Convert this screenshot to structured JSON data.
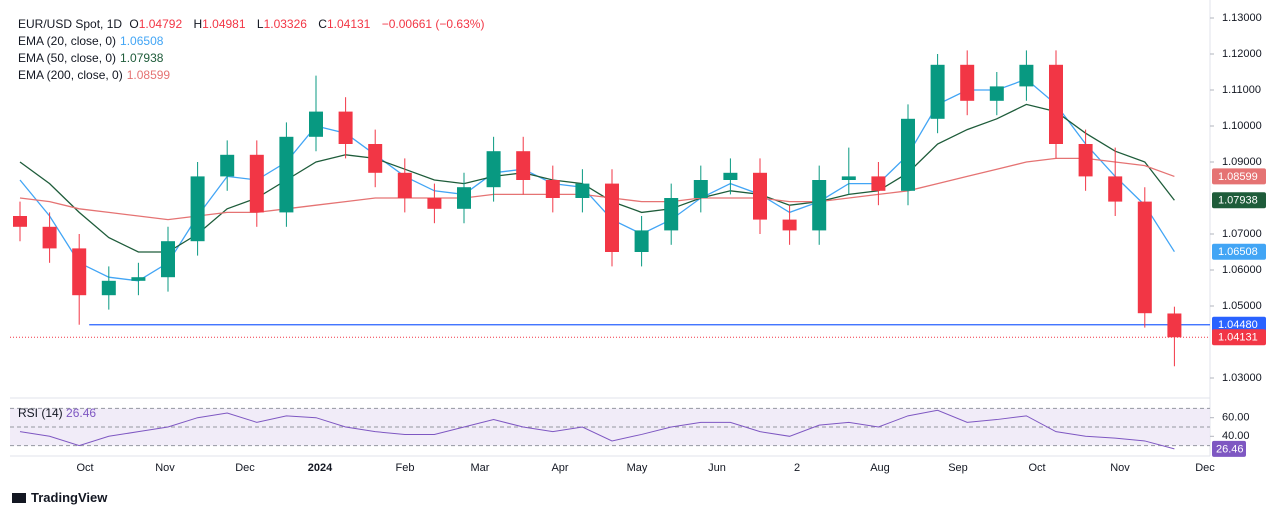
{
  "header": {
    "title": "EUR/USD Spot, 1D",
    "ohlc": [
      {
        "label": "O",
        "value": "1.04792"
      },
      {
        "label": "H",
        "value": "1.04981"
      },
      {
        "label": "L",
        "value": "1.03326"
      },
      {
        "label": "C",
        "value": "1.04131"
      }
    ],
    "change": "−0.00661 (−0.63%)"
  },
  "chart_data": [
    {
      "type": "candlestick",
      "candles": {
        "open": [
          1.075,
          1.072,
          1.066,
          1.053,
          1.057,
          1.058,
          1.068,
          1.086,
          1.092,
          1.076,
          1.097,
          1.104,
          1.095,
          1.087,
          1.08,
          1.077,
          1.083,
          1.093,
          1.085,
          1.08,
          1.084,
          1.065,
          1.071,
          1.08,
          1.085,
          1.087,
          1.074,
          1.071,
          1.085,
          1.086,
          1.082,
          1.102,
          1.117,
          1.107,
          1.111,
          1.117,
          1.095,
          1.086,
          1.079,
          1.04792
        ],
        "high": [
          1.079,
          1.076,
          1.07,
          1.061,
          1.062,
          1.072,
          1.09,
          1.096,
          1.096,
          1.101,
          1.114,
          1.108,
          1.099,
          1.091,
          1.084,
          1.087,
          1.097,
          1.097,
          1.089,
          1.088,
          1.088,
          1.075,
          1.084,
          1.089,
          1.091,
          1.091,
          1.078,
          1.089,
          1.094,
          1.09,
          1.106,
          1.12,
          1.121,
          1.115,
          1.121,
          1.121,
          1.099,
          1.094,
          1.083,
          1.04981
        ],
        "low": [
          1.068,
          1.062,
          1.0448,
          1.049,
          1.053,
          1.054,
          1.064,
          1.082,
          1.072,
          1.072,
          1.093,
          1.091,
          1.083,
          1.076,
          1.073,
          1.073,
          1.079,
          1.081,
          1.076,
          1.076,
          1.061,
          1.061,
          1.067,
          1.076,
          1.081,
          1.07,
          1.067,
          1.067,
          1.081,
          1.078,
          1.078,
          1.098,
          1.103,
          1.103,
          1.107,
          1.091,
          1.082,
          1.075,
          1.044,
          1.03326
        ],
        "close": [
          1.072,
          1.066,
          1.053,
          1.057,
          1.058,
          1.068,
          1.086,
          1.092,
          1.076,
          1.097,
          1.104,
          1.095,
          1.087,
          1.08,
          1.077,
          1.083,
          1.093,
          1.085,
          1.08,
          1.084,
          1.065,
          1.071,
          1.08,
          1.085,
          1.087,
          1.074,
          1.071,
          1.085,
          1.086,
          1.082,
          1.102,
          1.117,
          1.107,
          1.111,
          1.117,
          1.095,
          1.086,
          1.079,
          1.048,
          1.04131
        ],
        "up_color": "#089981",
        "down_color": "#f23645"
      },
      "series": [
        {
          "name": "EMA (20, close, 0)",
          "color": "#42a5f5",
          "values": [
            1.085,
            1.075,
            1.062,
            1.058,
            1.057,
            1.062,
            1.075,
            1.086,
            1.085,
            1.09,
            1.1,
            1.098,
            1.092,
            1.086,
            1.082,
            1.081,
            1.087,
            1.088,
            1.084,
            1.083,
            1.074,
            1.07,
            1.074,
            1.08,
            1.084,
            1.081,
            1.076,
            1.079,
            1.084,
            1.084,
            1.092,
            1.106,
            1.11,
            1.11,
            1.113,
            1.106,
            1.095,
            1.086,
            1.078,
            1.06508
          ]
        },
        {
          "name": "EMA (50, close, 0)",
          "color": "#1e5c3a",
          "values": [
            1.09,
            1.084,
            1.076,
            1.069,
            1.065,
            1.065,
            1.07,
            1.077,
            1.08,
            1.085,
            1.09,
            1.092,
            1.091,
            1.088,
            1.085,
            1.084,
            1.086,
            1.087,
            1.085,
            1.084,
            1.079,
            1.076,
            1.077,
            1.08,
            1.082,
            1.081,
            1.078,
            1.079,
            1.081,
            1.082,
            1.087,
            1.095,
            1.099,
            1.102,
            1.106,
            1.104,
            1.098,
            1.093,
            1.09,
            1.07938
          ]
        },
        {
          "name": "EMA (200, close, 0)",
          "color": "#e57373",
          "values": [
            1.08,
            1.079,
            1.077,
            1.076,
            1.075,
            1.074,
            1.075,
            1.076,
            1.076,
            1.077,
            1.078,
            1.079,
            1.08,
            1.08,
            1.08,
            1.08,
            1.081,
            1.081,
            1.081,
            1.081,
            1.08,
            1.079,
            1.079,
            1.08,
            1.08,
            1.08,
            1.079,
            1.079,
            1.08,
            1.081,
            1.082,
            1.084,
            1.086,
            1.088,
            1.09,
            1.091,
            1.091,
            1.09,
            1.089,
            1.08599
          ]
        }
      ],
      "hline": {
        "value": 1.0448,
        "label": "1.04480",
        "color": "#2962ff"
      },
      "ylim": [
        1.03,
        1.13
      ],
      "yticks": [
        {
          "value": 1.13,
          "label": "1.13000"
        },
        {
          "value": 1.12,
          "label": "1.12000"
        },
        {
          "value": 1.11,
          "label": "1.11000"
        },
        {
          "value": 1.1,
          "label": "1.10000"
        },
        {
          "value": 1.09,
          "label": "1.09000"
        },
        {
          "value": 1.07,
          "label": "1.07000"
        },
        {
          "value": 1.06,
          "label": "1.06000"
        },
        {
          "value": 1.05,
          "label": "1.05000"
        },
        {
          "value": 1.03,
          "label": "1.03000"
        }
      ],
      "xticks": [
        "Oct",
        "Nov",
        "Dec",
        "2024",
        "Feb",
        "Mar",
        "Apr",
        "May",
        "Jun",
        "2",
        "Aug",
        "Sep",
        "Oct",
        "Nov",
        "Dec"
      ]
    },
    {
      "type": "line",
      "series": [
        {
          "name": "RSI (14)",
          "color": "#7e57c2",
          "values": [
            45,
            40,
            30,
            40,
            45,
            50,
            60,
            65,
            55,
            62,
            60,
            50,
            45,
            42,
            42,
            50,
            58,
            50,
            45,
            50,
            35,
            42,
            50,
            55,
            55,
            45,
            40,
            52,
            55,
            50,
            62,
            68,
            55,
            58,
            62,
            45,
            40,
            38,
            35,
            26.46
          ]
        }
      ],
      "bands": [
        70,
        50,
        30
      ],
      "yticks": [
        {
          "value": 60,
          "label": "60.00"
        },
        {
          "value": 40,
          "label": "40.00"
        }
      ]
    }
  ],
  "footer": "TradingView"
}
